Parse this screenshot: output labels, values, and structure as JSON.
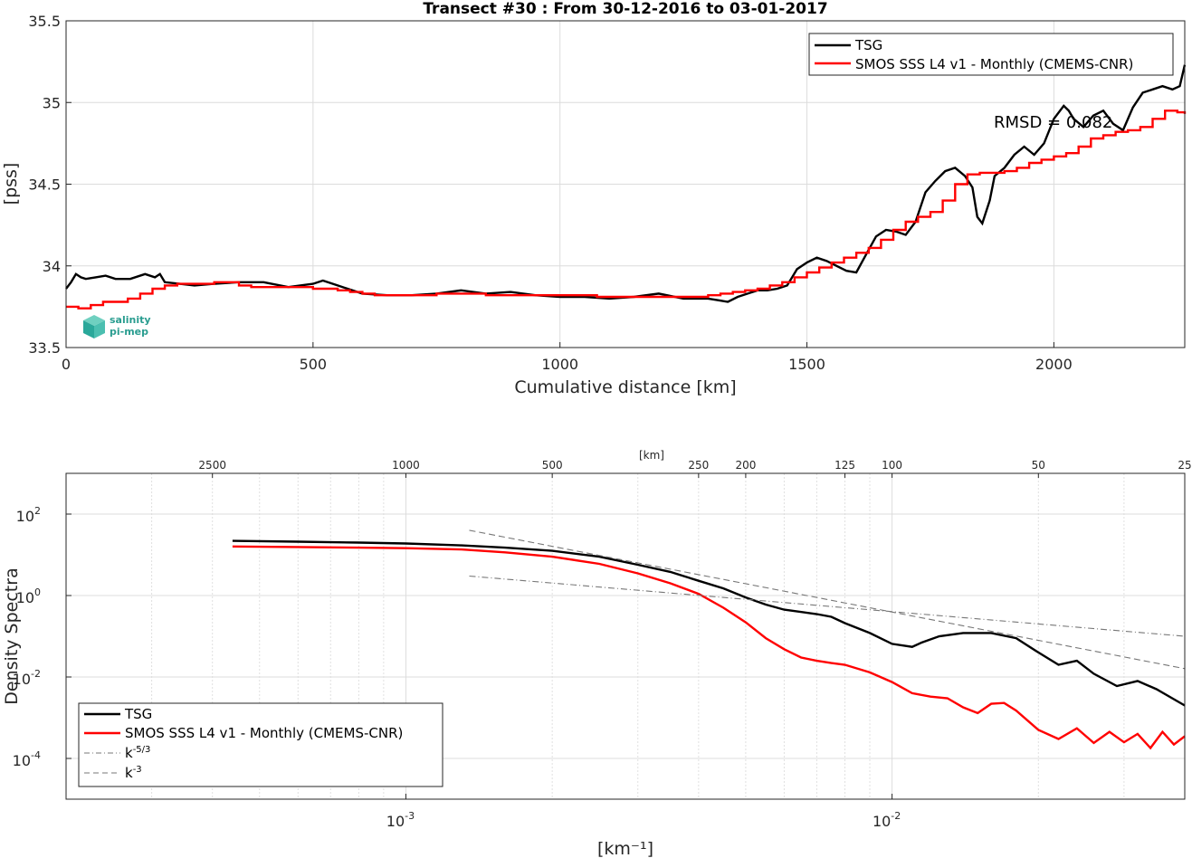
{
  "chart_data": [
    {
      "type": "line",
      "title": "Transect #30 : From 30-12-2016 to 03-01-2017",
      "xlabel": "Cumulative distance [km]",
      "ylabel": "[pss]",
      "xlim": [
        0,
        2265
      ],
      "ylim": [
        33.5,
        35.5
      ],
      "xticks": [
        0,
        500,
        1000,
        1500,
        2000
      ],
      "xtick_labels": [
        "0",
        "500",
        "1000",
        "1500",
        "2000"
      ],
      "yticks": [
        33.5,
        34,
        34.5,
        35,
        35.5
      ],
      "ytick_labels": [
        "33.5",
        "34",
        "34.5",
        "35",
        "35.5"
      ],
      "grid": true,
      "legend_position": "top-right",
      "annotation": "RMSD = 0.082",
      "logo": {
        "line1": "salinity",
        "line2": "pi-mep"
      },
      "series": [
        {
          "name": "TSG",
          "color": "#000000",
          "x": [
            0,
            10,
            20,
            30,
            40,
            60,
            80,
            100,
            130,
            160,
            180,
            190,
            200,
            230,
            260,
            300,
            350,
            400,
            450,
            500,
            520,
            550,
            600,
            650,
            700,
            750,
            800,
            850,
            900,
            950,
            1000,
            1050,
            1100,
            1150,
            1200,
            1250,
            1300,
            1320,
            1340,
            1360,
            1380,
            1400,
            1420,
            1440,
            1460,
            1470,
            1480,
            1500,
            1520,
            1540,
            1560,
            1580,
            1600,
            1620,
            1640,
            1660,
            1680,
            1700,
            1720,
            1740,
            1760,
            1780,
            1800,
            1820,
            1835,
            1845,
            1855,
            1870,
            1880,
            1900,
            1920,
            1940,
            1960,
            1980,
            2000,
            2020,
            2030,
            2040,
            2060,
            2080,
            2100,
            2120,
            2140,
            2160,
            2180,
            2200,
            2220,
            2240,
            2255,
            2265
          ],
          "y": [
            33.86,
            33.9,
            33.95,
            33.93,
            33.92,
            33.93,
            33.94,
            33.92,
            33.92,
            33.95,
            33.93,
            33.95,
            33.9,
            33.89,
            33.88,
            33.89,
            33.9,
            33.9,
            33.87,
            33.89,
            33.91,
            33.88,
            33.83,
            33.82,
            33.82,
            33.83,
            33.85,
            33.83,
            33.84,
            33.82,
            33.81,
            33.81,
            33.8,
            33.81,
            33.83,
            33.8,
            33.8,
            33.79,
            33.78,
            33.81,
            33.83,
            33.85,
            33.85,
            33.86,
            33.88,
            33.93,
            33.98,
            34.02,
            34.05,
            34.03,
            34.0,
            33.97,
            33.96,
            34.07,
            34.18,
            34.22,
            34.21,
            34.19,
            34.27,
            34.45,
            34.52,
            34.58,
            34.6,
            34.55,
            34.48,
            34.3,
            34.26,
            34.4,
            34.55,
            34.6,
            34.68,
            34.73,
            34.68,
            34.75,
            34.9,
            34.98,
            34.95,
            34.9,
            34.85,
            34.92,
            34.95,
            34.87,
            34.83,
            34.97,
            35.06,
            35.08,
            35.1,
            35.08,
            35.1,
            35.23
          ]
        },
        {
          "name": "SMOS SSS L4 v1 - Monthly (CMEMS-CNR)",
          "color": "#ff0000",
          "x": [
            0,
            25,
            50,
            75,
            100,
            125,
            150,
            175,
            200,
            225,
            250,
            275,
            300,
            325,
            350,
            375,
            400,
            425,
            450,
            475,
            500,
            525,
            550,
            575,
            600,
            625,
            650,
            675,
            700,
            725,
            750,
            775,
            800,
            825,
            850,
            875,
            900,
            925,
            950,
            975,
            1000,
            1025,
            1050,
            1075,
            1100,
            1125,
            1150,
            1175,
            1200,
            1225,
            1250,
            1275,
            1300,
            1325,
            1350,
            1375,
            1400,
            1425,
            1450,
            1475,
            1500,
            1525,
            1550,
            1575,
            1600,
            1625,
            1650,
            1675,
            1700,
            1725,
            1750,
            1775,
            1800,
            1825,
            1850,
            1875,
            1900,
            1925,
            1950,
            1975,
            2000,
            2025,
            2050,
            2075,
            2100,
            2125,
            2150,
            2175,
            2200,
            2225,
            2250,
            2265
          ],
          "y": [
            33.75,
            33.74,
            33.76,
            33.78,
            33.78,
            33.8,
            33.83,
            33.86,
            33.88,
            33.89,
            33.89,
            33.89,
            33.9,
            33.9,
            33.88,
            33.87,
            33.87,
            33.87,
            33.87,
            33.87,
            33.86,
            33.86,
            33.85,
            33.84,
            33.83,
            33.82,
            33.82,
            33.82,
            33.82,
            33.82,
            33.83,
            33.83,
            33.83,
            33.83,
            33.82,
            33.82,
            33.82,
            33.82,
            33.82,
            33.82,
            33.82,
            33.82,
            33.82,
            33.81,
            33.81,
            33.81,
            33.81,
            33.81,
            33.81,
            33.81,
            33.81,
            33.81,
            33.82,
            33.83,
            33.84,
            33.85,
            33.86,
            33.88,
            33.9,
            33.93,
            33.96,
            33.99,
            34.02,
            34.05,
            34.08,
            34.11,
            34.16,
            34.22,
            34.27,
            34.3,
            34.33,
            34.4,
            34.5,
            34.56,
            34.57,
            34.57,
            34.58,
            34.6,
            34.63,
            34.65,
            34.67,
            34.69,
            34.73,
            34.78,
            34.8,
            34.82,
            34.83,
            34.85,
            34.9,
            34.95,
            34.94,
            34.93
          ]
        }
      ]
    },
    {
      "type": "line",
      "xlabel": "[km⁻¹]",
      "ylabel": "Density Spectra",
      "xscale": "log",
      "yscale": "log",
      "xlim": [
        0.0002,
        0.04
      ],
      "ylim": [
        1e-05,
        1000
      ],
      "top_axis_label": "[km]",
      "top_axis_ticks": [
        2500,
        1000,
        500,
        250,
        200,
        125,
        100,
        50,
        25
      ],
      "top_axis_labels": [
        "2500",
        "1000",
        "500",
        "250",
        "200",
        "125",
        "100",
        "50",
        "25"
      ],
      "xticks": [
        0.001,
        0.01
      ],
      "xtick_labels": [
        "10",
        "10"
      ],
      "xtick_exponents": [
        "-3",
        "-2"
      ],
      "yticks": [
        0.0001,
        0.01,
        1,
        100
      ],
      "ytick_labels": [
        "10",
        "10",
        "10",
        "10"
      ],
      "ytick_exponents": [
        "-4",
        "-2",
        "0",
        "2"
      ],
      "grid": true,
      "legend_position": "bottom-left",
      "legend_entries": [
        {
          "label": "TSG"
        },
        {
          "label": "SMOS SSS L4 v1 - Monthly (CMEMS-CNR)"
        },
        {
          "label": "k",
          "sup": "-5/3"
        },
        {
          "label": "k",
          "sup": "-3"
        }
      ],
      "series": [
        {
          "name": "TSG",
          "color": "#000000",
          "style": "solid",
          "x": [
            0.00044,
            0.0006,
            0.0008,
            0.001,
            0.0013,
            0.0016,
            0.002,
            0.0025,
            0.003,
            0.0035,
            0.004,
            0.0045,
            0.005,
            0.0055,
            0.006,
            0.007,
            0.0075,
            0.008,
            0.009,
            0.01,
            0.011,
            0.0115,
            0.0125,
            0.014,
            0.016,
            0.018,
            0.02,
            0.022,
            0.024,
            0.026,
            0.029,
            0.032,
            0.035,
            0.04
          ],
          "y": [
            22,
            21,
            20,
            19,
            17,
            15,
            12.5,
            9,
            5.7,
            3.8,
            2.3,
            1.5,
            0.9,
            0.6,
            0.45,
            0.35,
            0.3,
            0.21,
            0.12,
            0.065,
            0.055,
            0.07,
            0.1,
            0.12,
            0.12,
            0.09,
            0.04,
            0.02,
            0.025,
            0.012,
            0.006,
            0.008,
            0.005,
            0.002
          ]
        },
        {
          "name": "SMOS SSS L4 v1 - Monthly (CMEMS-CNR)",
          "color": "#ff0000",
          "style": "solid",
          "x": [
            0.00044,
            0.0006,
            0.0008,
            0.001,
            0.0013,
            0.0016,
            0.002,
            0.0025,
            0.003,
            0.0035,
            0.004,
            0.0045,
            0.005,
            0.0055,
            0.006,
            0.0065,
            0.007,
            0.0075,
            0.008,
            0.009,
            0.01,
            0.011,
            0.012,
            0.013,
            0.014,
            0.015,
            0.016,
            0.017,
            0.018,
            0.02,
            0.022,
            0.024,
            0.026,
            0.028,
            0.03,
            0.032,
            0.034,
            0.036,
            0.038,
            0.04
          ],
          "y": [
            16,
            15.5,
            15,
            14.5,
            13.5,
            11.5,
            9,
            6,
            3.5,
            2,
            1.1,
            0.5,
            0.22,
            0.09,
            0.048,
            0.03,
            0.025,
            0.022,
            0.02,
            0.013,
            0.0075,
            0.004,
            0.0033,
            0.003,
            0.0018,
            0.0013,
            0.0022,
            0.0023,
            0.0015,
            0.0005,
            0.0003,
            0.00055,
            0.00024,
            0.00045,
            0.00025,
            0.0004,
            0.00018,
            0.00045,
            0.00022,
            0.00035
          ]
        },
        {
          "name": "k-5/3",
          "color": "#777777",
          "style": "dashdot",
          "x": [
            0.00135,
            0.04
          ],
          "y": [
            3.0,
            0.1
          ]
        },
        {
          "name": "k-3",
          "color": "#777777",
          "style": "dashed",
          "x": [
            0.00135,
            0.04
          ],
          "y": [
            40.0,
            0.016
          ]
        }
      ]
    }
  ]
}
